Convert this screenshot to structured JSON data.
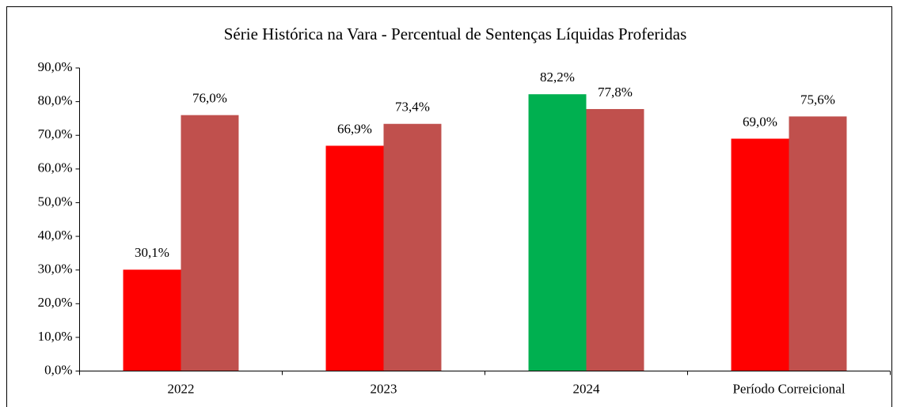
{
  "chart_data": {
    "type": "bar",
    "title": "Série Histórica na Vara - Percentual de Sentenças Líquidas Proferidas",
    "categories": [
      "2022",
      "2023",
      "2024",
      "Período Correicional"
    ],
    "series": [
      {
        "colors": [
          "#ff0000",
          "#ff0000",
          "#00b050",
          "#ff0000"
        ],
        "values": [
          30.1,
          66.9,
          82.2,
          69.0
        ],
        "value_labels": [
          "30,1%",
          "66,9%",
          "82,2%",
          "69,0%"
        ]
      },
      {
        "color": "#c0504d",
        "values": [
          76.0,
          73.4,
          77.8,
          75.6
        ],
        "value_labels": [
          "76,0%",
          "73,4%",
          "77,8%",
          "75,6%"
        ]
      }
    ],
    "ylim": [
      0,
      90
    ],
    "yticks": [
      {
        "value": 0,
        "label": "0,0%"
      },
      {
        "value": 10,
        "label": "10,0%"
      },
      {
        "value": 20,
        "label": "20,0%"
      },
      {
        "value": 30,
        "label": "30,0%"
      },
      {
        "value": 40,
        "label": "40,0%"
      },
      {
        "value": 50,
        "label": "50,0%"
      },
      {
        "value": 60,
        "label": "60,0%"
      },
      {
        "value": 70,
        "label": "70,0%"
      },
      {
        "value": 80,
        "label": "80,0%"
      },
      {
        "value": 90,
        "label": "90,0%"
      }
    ],
    "grid": false
  }
}
